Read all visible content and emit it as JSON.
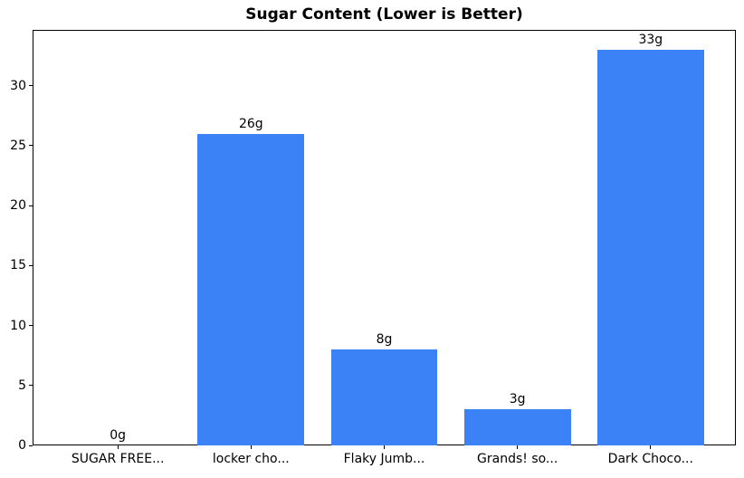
{
  "chart_data": {
    "type": "bar",
    "title": "Sugar Content (Lower is Better)",
    "categories": [
      "SUGAR FREE...",
      "locker cho...",
      "Flaky Jumb...",
      "Grands! so...",
      "Dark Choco..."
    ],
    "values": [
      0,
      26,
      8,
      3,
      33
    ],
    "value_labels": [
      "0g",
      "26g",
      "8g",
      "3g",
      "33g"
    ],
    "xlabel": "",
    "ylabel": "",
    "yticks": [
      0,
      5,
      10,
      15,
      20,
      25,
      30
    ],
    "ylim": [
      0,
      34.65
    ],
    "grid": false,
    "legend_position": "none",
    "bar_color": "#3b82f6",
    "axis_color": "#000000",
    "text_color": "#000000",
    "background_color": "#ffffff"
  }
}
